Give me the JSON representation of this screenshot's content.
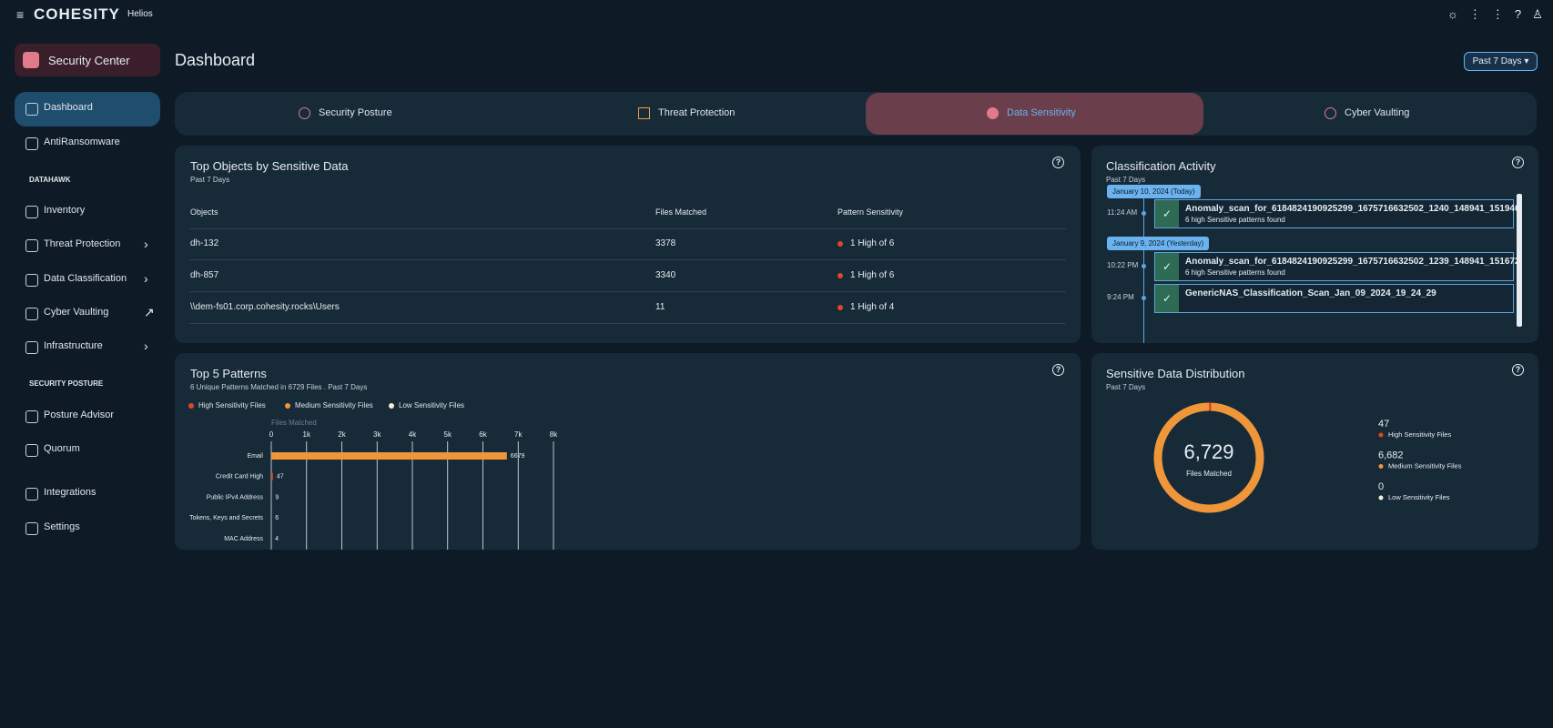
{
  "header": {
    "brand": "COHESITY",
    "product": "Helios"
  },
  "sidebar": {
    "app": "Security Center",
    "items": [
      "Dashboard",
      "AntiRansomware",
      "Inventory",
      "Threat Protection",
      "Data Classification",
      "Cyber Vaulting",
      "Infrastructure",
      "Posture Advisor",
      "Quorum",
      "Integrations",
      "Settings"
    ],
    "sections": [
      "DATAHAWK",
      "SECURITY POSTURE"
    ]
  },
  "page": {
    "title": "Dashboard",
    "range": "Past 7 Days"
  },
  "tabs": [
    "Security Posture",
    "Threat Protection",
    "Data Sensitivity",
    "Cyber Vaulting"
  ],
  "top_objects": {
    "title": "Top Objects by Sensitive Data",
    "subtitle": "Past 7 Days",
    "columns": [
      "Objects",
      "Files Matched",
      "Pattern Sensitivity"
    ],
    "rows": [
      [
        "dh-132",
        3378,
        "1 High of 6"
      ],
      [
        "dh-857",
        3340,
        "1 High of 6"
      ],
      [
        "\\\\dem-fs01.corp.cohesity.rocks\\Users",
        11,
        "1 High of 4"
      ]
    ]
  },
  "activity": {
    "title": "Classification Activity",
    "subtitle": "Past 7 Days",
    "groups": [
      {
        "date": "January 10, 2024 (Today)",
        "events": [
          {
            "time": "11:24 AM",
            "name": "Anomaly_scan_for_6184824190925299_1675716632502_1240_148941_151946",
            "detail": "6 high Sensitive patterns found"
          }
        ]
      },
      {
        "date": "January 9, 2024 (Yesterday)",
        "events": [
          {
            "time": "10:22 PM",
            "name": "Anomaly_scan_for_6184824190925299_1675716632502_1239_148941_151672",
            "detail": "6 high Sensitive patterns found"
          },
          {
            "time": "9:24 PM",
            "name": "GenericNAS_Classification_Scan_Jan_09_2024_19_24_29"
          }
        ]
      }
    ]
  },
  "patterns": {
    "type": "bar",
    "title": "Top 5 Patterns",
    "subtitle": "6 Unique Patterns Matched in 6729 Files . Past 7 Days",
    "legend": [
      {
        "name": "High Sensitivity Files",
        "color": "#e0452a"
      },
      {
        "name": "Medium Sensitivity Files",
        "color": "#f0963a"
      },
      {
        "name": "Low Sensitivity Files",
        "color": "#f5efd9"
      }
    ],
    "xlabel": "Files Matched",
    "categories": [
      "Email",
      "Credit Card High",
      "Public IPv4 Address",
      "Tokens, Keys and Secrets",
      "MAC Address"
    ],
    "values": [
      6679,
      47,
      9,
      6,
      4
    ],
    "colors": [
      "#f0963a",
      "#e0452a",
      "#f0963a",
      "#f0963a",
      "#f0963a"
    ],
    "xlim": [
      0,
      8000
    ],
    "xticks": [
      0,
      {
        "value": 1000,
        "label": "1k"
      },
      {
        "value": 2000,
        "label": "2k"
      },
      {
        "value": 3000,
        "label": "3k"
      },
      {
        "value": 4000,
        "label": "4k"
      },
      {
        "value": 5000,
        "label": "5k"
      },
      {
        "value": 6000,
        "label": "6k"
      },
      {
        "value": 7000,
        "label": "7k"
      },
      {
        "value": 8000,
        "label": "8k"
      }
    ],
    "grid": true
  },
  "distribution": {
    "type": "pie",
    "title": "Sensitive Data Distribution",
    "subtitle": "Past 7 Days",
    "total": "6,729",
    "center_label": "Files Matched",
    "categories": [
      "High Sensitivity Files",
      "Medium Sensitivity Files",
      "Low Sensitivity Files"
    ],
    "values": [
      47,
      6682,
      0
    ],
    "value_labels": [
      "47",
      "6,682",
      "0"
    ],
    "colors": [
      "#e0452a",
      "#f0963a",
      "#f5efd9"
    ]
  }
}
